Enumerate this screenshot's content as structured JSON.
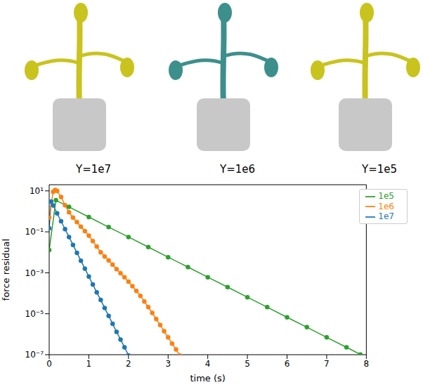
{
  "image_labels": [
    "Y=1e7",
    "Y=1e6",
    "Y=1e5"
  ],
  "chart_data": {
    "type": "line",
    "xlabel": "time (s)",
    "ylabel": "force residual",
    "log": "y",
    "xlim": [
      0,
      8
    ],
    "xticks": [
      0,
      1,
      2,
      3,
      4,
      5,
      6,
      7,
      8
    ],
    "ylim": [
      1e-07,
      20
    ],
    "yticks": [
      {
        "value": 1e-07,
        "label": "10⁻⁷"
      },
      {
        "value": 1e-05,
        "label": "10⁻⁵"
      },
      {
        "value": 0.001,
        "label": "10⁻³"
      },
      {
        "value": 0.1,
        "label": "10⁻¹"
      },
      {
        "value": 10,
        "label": "10¹"
      }
    ],
    "legend": "upper right",
    "grid": false,
    "series": [
      {
        "name": "1e7",
        "color": "#1f77b4",
        "marker": "circle",
        "x": [
          0,
          0.05,
          0.1,
          0.2,
          0.3,
          0.4,
          0.5,
          0.6,
          0.7,
          0.8,
          0.9,
          1.0,
          1.1,
          1.2,
          1.3,
          1.4,
          1.5,
          1.6,
          1.7,
          1.8,
          1.9,
          2.0
        ],
        "values": [
          0.15,
          3,
          1.95,
          0.8,
          0.33,
          0.135,
          0.056,
          0.023,
          0.0095,
          0.0039,
          0.0016,
          0.00066,
          0.00027,
          0.00011,
          4.7e-05,
          1.9e-05,
          7.9e-06,
          3.2e-06,
          1.3e-06,
          5.5e-07,
          2.3e-07,
          9.3e-08
        ]
      },
      {
        "name": "1e6",
        "color": "#ff7f0e",
        "marker": "circle",
        "x": [
          0,
          0.1,
          0.15,
          0.2,
          0.3,
          0.4,
          0.5,
          0.6,
          0.7,
          0.8,
          0.9,
          1.0,
          1.1,
          1.2,
          1.3,
          1.4,
          1.5,
          1.6,
          1.7,
          1.8,
          1.9,
          2.0,
          2.1,
          2.2,
          2.3,
          2.4,
          2.5,
          2.6,
          2.7,
          2.8,
          2.9,
          3.0,
          3.1,
          3.2,
          3.3
        ],
        "values": [
          0.5,
          9,
          11,
          10,
          5,
          2,
          0.9,
          0.5,
          0.3,
          0.18,
          0.11,
          0.065,
          0.035,
          0.019,
          0.01,
          0.0062,
          0.004,
          0.0025,
          0.0015,
          0.00095,
          0.0006,
          0.00037,
          0.00022,
          0.00013,
          7.5e-05,
          4e-05,
          2.1e-05,
          1.1e-05,
          5.5e-06,
          2.8e-06,
          1.4e-06,
          7e-07,
          3.5e-07,
          1.8e-07,
          9e-08
        ]
      },
      {
        "name": "1e5",
        "color": "#2ca02c",
        "marker": "circle",
        "x": [
          0,
          0.17,
          0.5,
          1.0,
          1.5,
          2.0,
          2.5,
          3.0,
          3.5,
          4.0,
          4.5,
          5.0,
          5.5,
          6.0,
          6.5,
          7.0,
          7.5,
          7.85
        ],
        "values": [
          0.013,
          3.5,
          1.65,
          0.53,
          0.17,
          0.056,
          0.018,
          0.0058,
          0.0019,
          0.00061,
          0.0002,
          6.4e-05,
          2.1e-05,
          6.7e-06,
          2.2e-06,
          7e-07,
          2.3e-07,
          1.03e-07
        ]
      }
    ]
  }
}
